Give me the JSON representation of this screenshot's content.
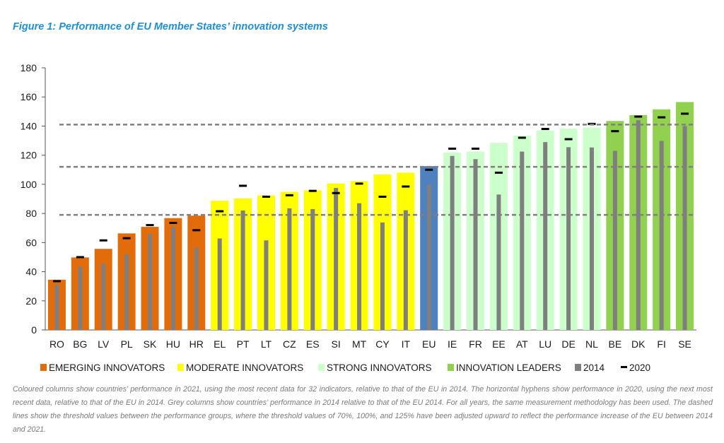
{
  "figure": {
    "title": "Figure 1: Performance of EU Member States’ innovation systems",
    "caption": "Coloured columns show countries’ performance in 2021, using the most recent data for 32 indicators, relative to that of the EU in 2014. The horizontal hyphens show performance in 2020, using the next most recent data, relative to that of the EU in 2014. Grey columns show countries’ performance in 2014 relative to that of the EU 2014. For all years, the same measurement methodology has been used. The dashed lines show the threshold values between the performance groups, where the threshold values of 70%, 100%, and 125% have been adjusted upward to reflect the performance increase of the EU between 2014 and 2021."
  },
  "colors": {
    "emerging": "#e36c0a",
    "moderate": "#ffff00",
    "strong": "#ccffcc",
    "leaders": "#92d050",
    "eu": "#4f81bd",
    "grey": "#7f7f7f",
    "marker": "#000000",
    "threshold": "#808080"
  },
  "chart_data": {
    "type": "bar",
    "ylim": [
      0,
      180
    ],
    "yticks": [
      0,
      20,
      40,
      60,
      80,
      100,
      120,
      140,
      160,
      180
    ],
    "grid": false,
    "thresholds": [
      79,
      112,
      141
    ],
    "categories": [
      "RO",
      "BG",
      "LV",
      "PL",
      "SK",
      "HU",
      "HR",
      "EL",
      "PT",
      "LT",
      "CZ",
      "ES",
      "SI",
      "MT",
      "CY",
      "IT",
      "EU",
      "IE",
      "FR",
      "EE",
      "AT",
      "LU",
      "DE",
      "NL",
      "BE",
      "DK",
      "FI",
      "SE"
    ],
    "groups": [
      "emerging",
      "emerging",
      "emerging",
      "emerging",
      "emerging",
      "emerging",
      "emerging",
      "moderate",
      "moderate",
      "moderate",
      "moderate",
      "moderate",
      "moderate",
      "moderate",
      "moderate",
      "moderate",
      "eu",
      "strong",
      "strong",
      "strong",
      "strong",
      "strong",
      "strong",
      "strong",
      "leaders",
      "leaders",
      "leaders",
      "leaders"
    ],
    "series": [
      {
        "name": "2021",
        "values": [
          34.5,
          49.8,
          55.7,
          66.3,
          70.8,
          76.8,
          78.5,
          88.7,
          90.3,
          92.4,
          94.8,
          95.8,
          100.6,
          102.2,
          106.7,
          108.0,
          112.5,
          121.8,
          122.5,
          128.5,
          133.5,
          137.0,
          138.2,
          139.0,
          143.5,
          147.5,
          151.5,
          156.5
        ]
      },
      {
        "name": "2014",
        "values": [
          31.0,
          43.5,
          45.5,
          52.0,
          66.0,
          70.5,
          56.5,
          62.8,
          82.0,
          61.5,
          83.5,
          83.0,
          97.5,
          87.0,
          73.8,
          82.2,
          100.0,
          119.5,
          117.3,
          93.0,
          122.5,
          129.0,
          125.5,
          125.3,
          123.0,
          144.0,
          129.8,
          140.0
        ]
      },
      {
        "name": "2020",
        "values": [
          33.5,
          50.0,
          61.5,
          63.0,
          72.0,
          73.5,
          68.5,
          81.5,
          99.0,
          91.5,
          92.5,
          95.5,
          94.0,
          100.5,
          91.5,
          98.5,
          110.0,
          124.5,
          124.5,
          108.0,
          132.0,
          138.0,
          131.0,
          141.5,
          136.5,
          146.5,
          146.0,
          148.5
        ]
      }
    ],
    "legend": [
      {
        "key": "emerging",
        "label": "EMERGING INNOVATORS"
      },
      {
        "key": "moderate",
        "label": "MODERATE INNOVATORS"
      },
      {
        "key": "strong",
        "label": "STRONG INNOVATORS"
      },
      {
        "key": "leaders",
        "label": "INNOVATION LEADERS"
      },
      {
        "key": "grey",
        "label": "2014"
      },
      {
        "key": "marker",
        "label": "2020"
      }
    ]
  }
}
